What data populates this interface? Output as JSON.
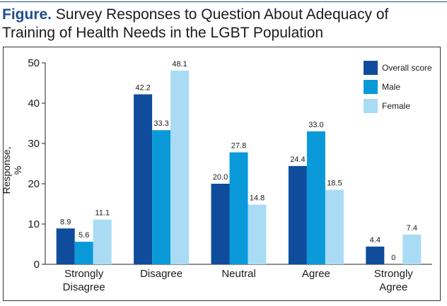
{
  "title": {
    "prefix": "Figure.",
    "text": "Survey Responses to Question About Adequacy of Training of Health Needs in the LGBT Population"
  },
  "colors": {
    "overall": "#0f4c9c",
    "male": "#0a9ad9",
    "female": "#a9dcf4",
    "title_accent": "#1f4e8c"
  },
  "chart_data": {
    "type": "bar",
    "ylabel": "Response, %",
    "ylim": [
      0,
      50
    ],
    "yticks": [
      0,
      10,
      20,
      30,
      40,
      50
    ],
    "categories": [
      [
        "Strongly",
        "Disagree"
      ],
      [
        "Disagree"
      ],
      [
        "Neutral"
      ],
      [
        "Agree"
      ],
      [
        "Strongly",
        "Agree"
      ]
    ],
    "series": [
      {
        "name": "Overall score",
        "values": [
          8.9,
          42.2,
          20.0,
          24.4,
          4.4
        ],
        "labels": [
          "8.9",
          "42.2",
          "20.0",
          "24.4",
          "4.4"
        ]
      },
      {
        "name": "Male",
        "values": [
          5.6,
          33.3,
          27.8,
          33.0,
          0
        ],
        "labels": [
          "5.6",
          "33.3",
          "27.8",
          "33.0",
          "0"
        ]
      },
      {
        "name": "Female",
        "values": [
          11.1,
          48.1,
          14.8,
          18.5,
          7.4
        ],
        "labels": [
          "11.1",
          "48.1",
          "14.8",
          "18.5",
          "7.4"
        ]
      }
    ],
    "legend": "top-right",
    "grid": false
  }
}
